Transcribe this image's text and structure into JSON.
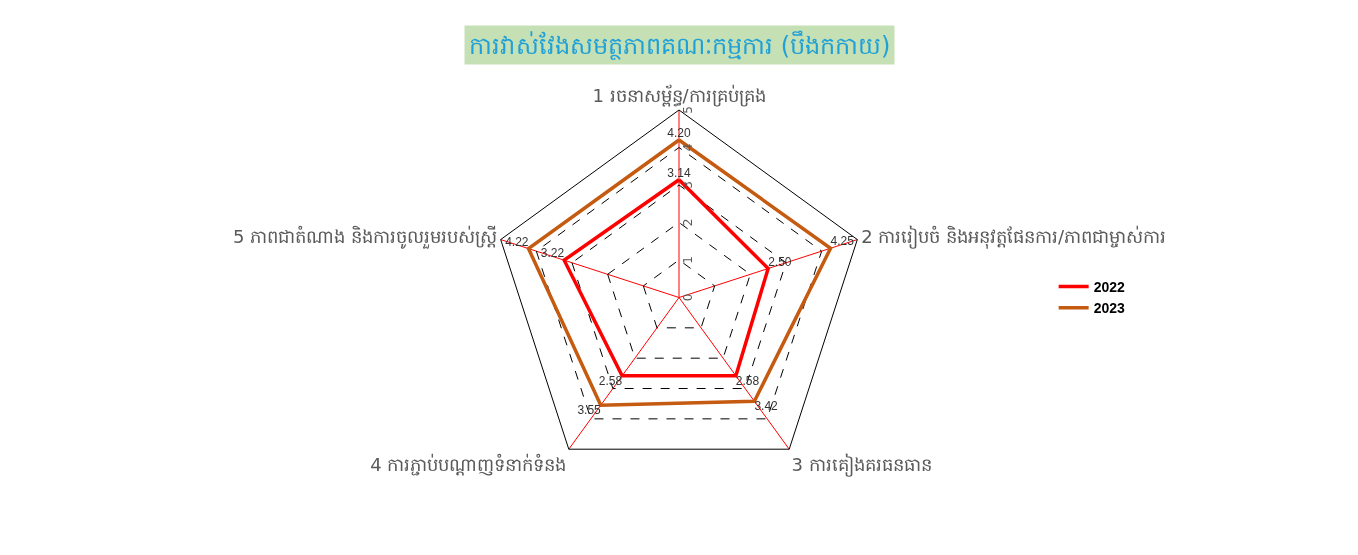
{
  "chart_data": {
    "type": "radar",
    "title": "ការវាស់វែងសមត្ថភាពគណៈកម្មការ (បឹងកកាយ)",
    "categories": [
      "1 រចនាសម្ព័ន្ធ/ការគ្រប់គ្រង",
      "2 ការរៀបចំ និងអនុវត្តផែនការ/ភាពជាម្ចាស់ការ",
      "3 ការគៀងគរធនធាន",
      "4 ការភ្ជាប់បណ្តាញទំនាក់ទំនង",
      "5 ភាពជាតំណាង និងការចូលរួមរបស់ស្ត្រី"
    ],
    "series": [
      {
        "name": "2022",
        "color": "#ff0000",
        "values": [
          3.14,
          2.5,
          2.58,
          2.58,
          3.22
        ],
        "value_labels": [
          "3.14",
          "2.50",
          "2.58",
          "2.58",
          "3.22"
        ]
      },
      {
        "name": "2023",
        "color": "#c55a11",
        "values": [
          4.2,
          4.25,
          3.42,
          3.55,
          4.22
        ],
        "value_labels": [
          "4.20",
          "4.25",
          "3.42",
          "3.55",
          "4.22"
        ]
      }
    ],
    "ylim": [
      0,
      5
    ],
    "yticks": [
      0,
      1,
      2,
      3,
      4,
      5
    ],
    "grid": true,
    "legend": "right",
    "marker": "none",
    "line_style": "solid"
  }
}
